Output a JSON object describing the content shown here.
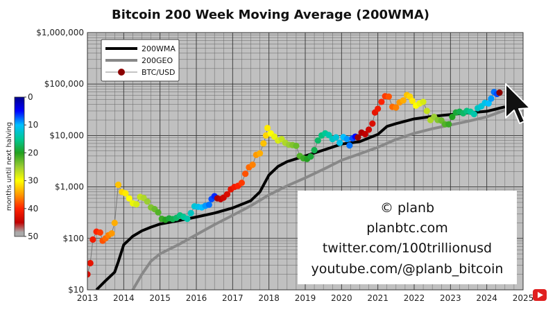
{
  "chart_data": {
    "type": "scatter",
    "title": "Bitcoin 200 Week Moving Average (200WMA)",
    "y_scale": "log",
    "ylim": [
      10,
      1000000
    ],
    "xlim": [
      2013,
      2025
    ],
    "x_ticks": [
      "2013",
      "2014",
      "2015",
      "2016",
      "2017",
      "2018",
      "2019",
      "2020",
      "2021",
      "2022",
      "2023",
      "2024",
      "2025"
    ],
    "y_ticks": [
      "$10",
      "$100",
      "$1,000",
      "$10,000",
      "$100,000",
      "$1,000,000"
    ],
    "y_tick_values": [
      10,
      100,
      1000,
      10000,
      100000,
      1000000
    ],
    "grid": true,
    "legend_position": "top-left",
    "legend": [
      {
        "label": "200WMA",
        "color": "#000000",
        "kind": "line"
      },
      {
        "label": "200GEO",
        "color": "#888888",
        "kind": "line"
      },
      {
        "label": "BTC/USD",
        "color": "#8b0000",
        "kind": "marker"
      }
    ],
    "colorbar": {
      "label": "months until next halving",
      "ticks": [
        "0",
        "10",
        "20",
        "30",
        "40",
        "50"
      ],
      "tick_values": [
        0,
        10,
        20,
        30,
        40,
        50
      ],
      "range": [
        0,
        50
      ]
    },
    "series": [
      {
        "name": "200WMA",
        "color": "#000000",
        "points": [
          [
            2013.25,
            10
          ],
          [
            2013.5,
            15
          ],
          [
            2013.75,
            22
          ],
          [
            2013.85,
            35
          ],
          [
            2014.0,
            75
          ],
          [
            2014.25,
            110
          ],
          [
            2014.5,
            140
          ],
          [
            2014.75,
            165
          ],
          [
            2015.0,
            190
          ],
          [
            2015.5,
            220
          ],
          [
            2016.0,
            260
          ],
          [
            2016.5,
            310
          ],
          [
            2017.0,
            390
          ],
          [
            2017.5,
            540
          ],
          [
            2017.75,
            800
          ],
          [
            2018.0,
            1700
          ],
          [
            2018.25,
            2500
          ],
          [
            2018.5,
            3100
          ],
          [
            2019.0,
            4000
          ],
          [
            2019.5,
            5200
          ],
          [
            2020.0,
            6800
          ],
          [
            2020.5,
            7600
          ],
          [
            2021.0,
            10500
          ],
          [
            2021.25,
            15000
          ],
          [
            2021.5,
            17000
          ],
          [
            2022.0,
            21000
          ],
          [
            2022.5,
            23500
          ],
          [
            2023.0,
            25500
          ],
          [
            2023.5,
            27500
          ],
          [
            2024.0,
            29500
          ],
          [
            2024.5,
            36000
          ]
        ]
      },
      {
        "name": "200GEO",
        "color": "#888888",
        "points": [
          [
            2014.25,
            10
          ],
          [
            2014.5,
            20
          ],
          [
            2014.75,
            36
          ],
          [
            2015.0,
            50
          ],
          [
            2015.5,
            75
          ],
          [
            2016.0,
            118
          ],
          [
            2016.5,
            185
          ],
          [
            2017.0,
            280
          ],
          [
            2017.5,
            430
          ],
          [
            2018.0,
            700
          ],
          [
            2018.5,
            1050
          ],
          [
            2019.0,
            1500
          ],
          [
            2019.5,
            2200
          ],
          [
            2020.0,
            3300
          ],
          [
            2020.5,
            4400
          ],
          [
            2021.0,
            5900
          ],
          [
            2021.5,
            8400
          ],
          [
            2022.0,
            11000
          ],
          [
            2022.5,
            13500
          ],
          [
            2023.0,
            16000
          ],
          [
            2023.5,
            19000
          ],
          [
            2024.0,
            23000
          ],
          [
            2024.5,
            31000
          ]
        ]
      },
      {
        "name": "BTC/USD",
        "marker_color_by": "months until next halving",
        "points": [
          [
            2013.0,
            20,
            43
          ],
          [
            2013.08,
            33,
            42
          ],
          [
            2013.15,
            95,
            41
          ],
          [
            2013.25,
            135,
            40
          ],
          [
            2013.35,
            130,
            39
          ],
          [
            2013.42,
            90,
            38
          ],
          [
            2013.5,
            100,
            37
          ],
          [
            2013.58,
            115,
            36
          ],
          [
            2013.67,
            125,
            35
          ],
          [
            2013.75,
            200,
            34
          ],
          [
            2013.85,
            1100,
            33
          ],
          [
            2013.95,
            800,
            32
          ],
          [
            2014.05,
            750,
            31
          ],
          [
            2014.15,
            600,
            30
          ],
          [
            2014.25,
            480,
            29
          ],
          [
            2014.35,
            460,
            28
          ],
          [
            2014.45,
            640,
            27
          ],
          [
            2014.55,
            610,
            26
          ],
          [
            2014.65,
            520,
            25
          ],
          [
            2014.75,
            400,
            24
          ],
          [
            2014.85,
            370,
            23
          ],
          [
            2014.95,
            320,
            22
          ],
          [
            2015.05,
            240,
            21
          ],
          [
            2015.15,
            230,
            20
          ],
          [
            2015.25,
            245,
            19
          ],
          [
            2015.35,
            237,
            18
          ],
          [
            2015.45,
            250,
            17
          ],
          [
            2015.55,
            280,
            16
          ],
          [
            2015.65,
            260,
            15
          ],
          [
            2015.75,
            240,
            14
          ],
          [
            2015.85,
            310,
            13
          ],
          [
            2015.95,
            420,
            12
          ],
          [
            2016.05,
            410,
            11
          ],
          [
            2016.15,
            400,
            10
          ],
          [
            2016.25,
            430,
            9
          ],
          [
            2016.35,
            450,
            8
          ],
          [
            2016.42,
            580,
            7
          ],
          [
            2016.5,
            660,
            6
          ],
          [
            2016.58,
            600,
            46
          ],
          [
            2016.67,
            580,
            45
          ],
          [
            2016.75,
            620,
            44
          ],
          [
            2016.85,
            720,
            43
          ],
          [
            2016.95,
            900,
            42
          ],
          [
            2017.05,
            1000,
            41
          ],
          [
            2017.15,
            1050,
            40
          ],
          [
            2017.25,
            1200,
            39
          ],
          [
            2017.35,
            1800,
            38
          ],
          [
            2017.45,
            2400,
            37
          ],
          [
            2017.55,
            2700,
            36
          ],
          [
            2017.65,
            4200,
            35
          ],
          [
            2017.75,
            4500,
            34
          ],
          [
            2017.85,
            7000,
            33
          ],
          [
            2017.92,
            10000,
            32
          ],
          [
            2017.96,
            14000,
            31
          ],
          [
            2018.05,
            11000,
            30
          ],
          [
            2018.15,
            9500,
            29
          ],
          [
            2018.25,
            8000,
            28
          ],
          [
            2018.35,
            8500,
            27
          ],
          [
            2018.45,
            7200,
            26
          ],
          [
            2018.55,
            6600,
            25
          ],
          [
            2018.65,
            6500,
            24
          ],
          [
            2018.75,
            6300,
            23
          ],
          [
            2018.85,
            4000,
            22
          ],
          [
            2018.95,
            3600,
            21
          ],
          [
            2019.05,
            3500,
            20
          ],
          [
            2019.15,
            3900,
            19
          ],
          [
            2019.25,
            5200,
            18
          ],
          [
            2019.35,
            8000,
            17
          ],
          [
            2019.45,
            10000,
            16
          ],
          [
            2019.55,
            11000,
            15
          ],
          [
            2019.65,
            10200,
            14
          ],
          [
            2019.75,
            8500,
            13
          ],
          [
            2019.85,
            9200,
            12
          ],
          [
            2019.95,
            7200,
            11
          ],
          [
            2020.05,
            9300,
            10
          ],
          [
            2020.15,
            8500,
            9
          ],
          [
            2020.22,
            6400,
            8
          ],
          [
            2020.3,
            8800,
            7
          ],
          [
            2020.38,
            9500,
            5
          ],
          [
            2020.45,
            9200,
            47
          ],
          [
            2020.55,
            11400,
            46
          ],
          [
            2020.65,
            10600,
            45
          ],
          [
            2020.75,
            13000,
            44
          ],
          [
            2020.85,
            17000,
            43
          ],
          [
            2020.92,
            28000,
            42
          ],
          [
            2021.0,
            33000,
            41
          ],
          [
            2021.1,
            45000,
            40
          ],
          [
            2021.2,
            58000,
            39
          ],
          [
            2021.3,
            57000,
            38
          ],
          [
            2021.4,
            36000,
            37
          ],
          [
            2021.5,
            35000,
            36
          ],
          [
            2021.6,
            44000,
            35
          ],
          [
            2021.7,
            48000,
            34
          ],
          [
            2021.8,
            61000,
            33
          ],
          [
            2021.88,
            57000,
            32
          ],
          [
            2021.95,
            47000,
            31
          ],
          [
            2022.05,
            38000,
            30
          ],
          [
            2022.15,
            42000,
            29
          ],
          [
            2022.25,
            45000,
            28
          ],
          [
            2022.35,
            30000,
            27
          ],
          [
            2022.45,
            20000,
            26
          ],
          [
            2022.55,
            23000,
            25
          ],
          [
            2022.65,
            20000,
            24
          ],
          [
            2022.75,
            19500,
            23
          ],
          [
            2022.85,
            16500,
            22
          ],
          [
            2022.95,
            16500,
            21
          ],
          [
            2023.05,
            23000,
            20
          ],
          [
            2023.15,
            28000,
            19
          ],
          [
            2023.25,
            29000,
            18
          ],
          [
            2023.35,
            27000,
            17
          ],
          [
            2023.45,
            30000,
            16
          ],
          [
            2023.55,
            29000,
            15
          ],
          [
            2023.65,
            26000,
            14
          ],
          [
            2023.75,
            34000,
            13
          ],
          [
            2023.85,
            37000,
            12
          ],
          [
            2023.95,
            43000,
            11
          ],
          [
            2024.05,
            42000,
            10
          ],
          [
            2024.12,
            52000,
            9
          ],
          [
            2024.2,
            70000,
            8
          ],
          [
            2024.28,
            64000,
            7
          ],
          [
            2024.35,
            68000,
            48
          ]
        ]
      }
    ]
  },
  "credit_lines": [
    "© planb",
    "planbtc.com",
    "twitter.com/100trillionusd",
    "youtube.com/@planb_bitcoin"
  ]
}
